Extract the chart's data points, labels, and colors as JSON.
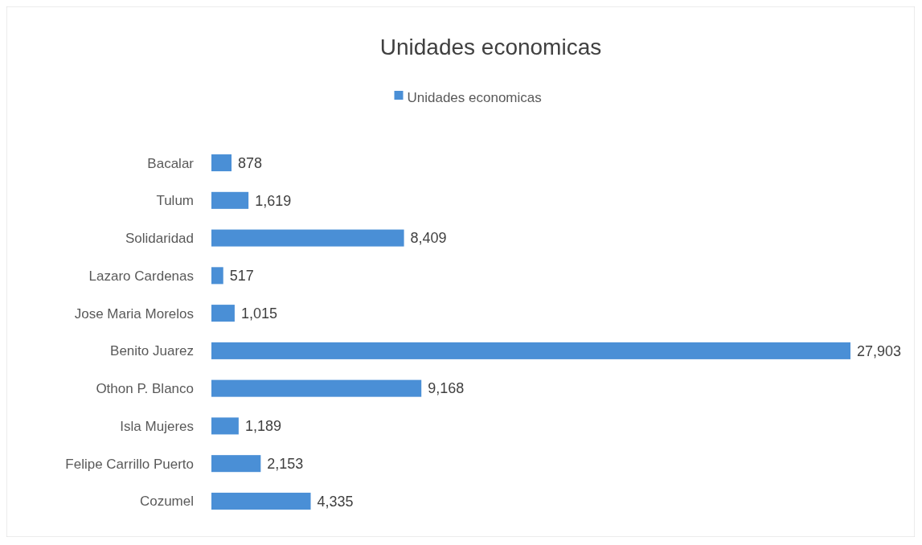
{
  "chart_data": {
    "type": "bar",
    "orientation": "horizontal",
    "title": "Unidades economicas",
    "categories": [
      "Bacalar",
      "Tulum",
      "Solidaridad",
      "Lazaro Cardenas",
      "Jose Maria Morelos",
      "Benito Juarez",
      "Othon P. Blanco",
      "Isla Mujeres",
      "Felipe Carrillo Puerto",
      "Cozumel"
    ],
    "series": [
      {
        "name": "Unidades economicas",
        "color": "#4a8fd6",
        "values": [
          878,
          1619,
          8409,
          517,
          1015,
          27903,
          9168,
          1189,
          2153,
          4335
        ],
        "value_labels": [
          "878",
          "1,619",
          "8,409",
          "517",
          "1,015",
          "27,903",
          "9,168",
          "1,189",
          "2,153",
          "4,335"
        ]
      }
    ],
    "legend": "top"
  }
}
